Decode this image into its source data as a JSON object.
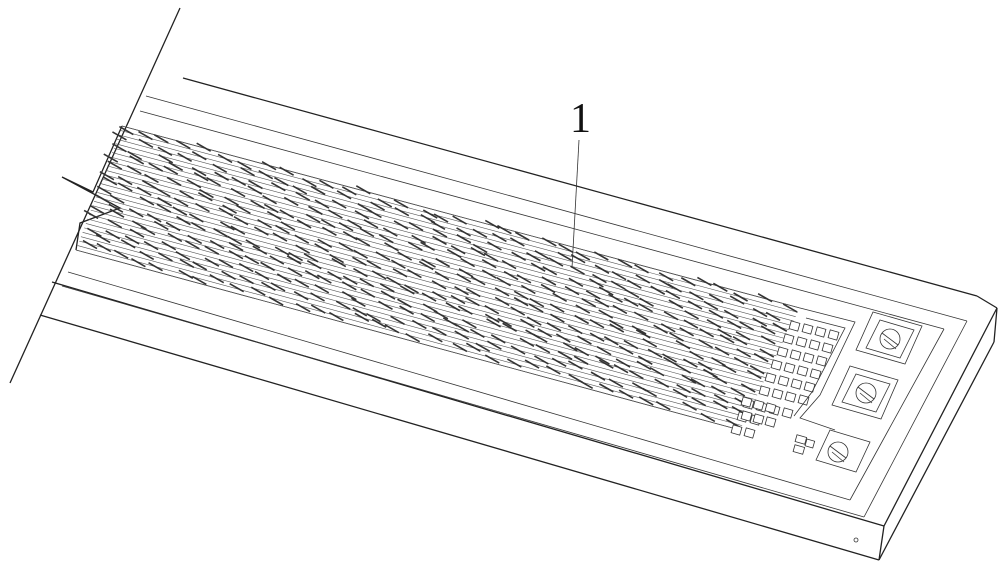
{
  "figure": {
    "reference_numerals": [
      {
        "id": "callout-1",
        "text": "1"
      }
    ],
    "colors": {
      "line": "#222222",
      "background": "#ffffff",
      "mesh": "#555555"
    }
  }
}
